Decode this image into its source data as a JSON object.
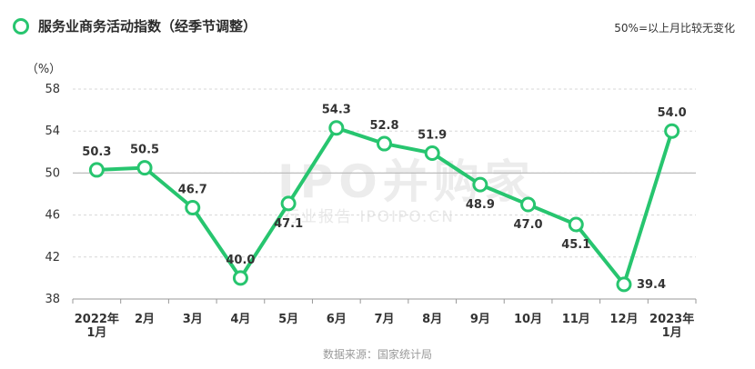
{
  "title": "服务业商务活动指数（经季节调整）",
  "note": "50%=以上月比较无变化",
  "source": "数据来源：国家统计局",
  "watermark": {
    "main": "IPO并购家",
    "sub": "行业报告 IPOIPO.CN"
  },
  "colors": {
    "line": "#27c56f",
    "point_fill": "#ffffff",
    "grid": "#d7d7d7",
    "baseline": "#bdbdbd",
    "text": "#333333"
  },
  "chart_data": {
    "type": "line",
    "title": "服务业商务活动指数（经季节调整）",
    "ylabel": "（%）",
    "ylim": [
      38,
      58
    ],
    "yticks": [
      38,
      42,
      46,
      50,
      54,
      58
    ],
    "grid": true,
    "reference_line": 50,
    "categories": [
      "2022年\n1月",
      "2月",
      "3月",
      "4月",
      "5月",
      "6月",
      "7月",
      "8月",
      "9月",
      "10月",
      "11月",
      "12月",
      "2023年\n1月"
    ],
    "values": [
      50.3,
      50.5,
      46.7,
      40.0,
      47.1,
      54.3,
      52.8,
      51.9,
      48.9,
      47.0,
      45.1,
      39.4,
      54.0
    ],
    "labels": [
      "50.3",
      "50.5",
      "46.7",
      "40.0",
      "47.1",
      "54.3",
      "52.8",
      "51.9",
      "48.9",
      "47.0",
      "45.1",
      "39.4",
      "54.0"
    ],
    "label_positions": [
      "above",
      "above",
      "above",
      "above",
      "below",
      "above",
      "above",
      "above",
      "below",
      "below",
      "below",
      "right",
      "above"
    ]
  }
}
